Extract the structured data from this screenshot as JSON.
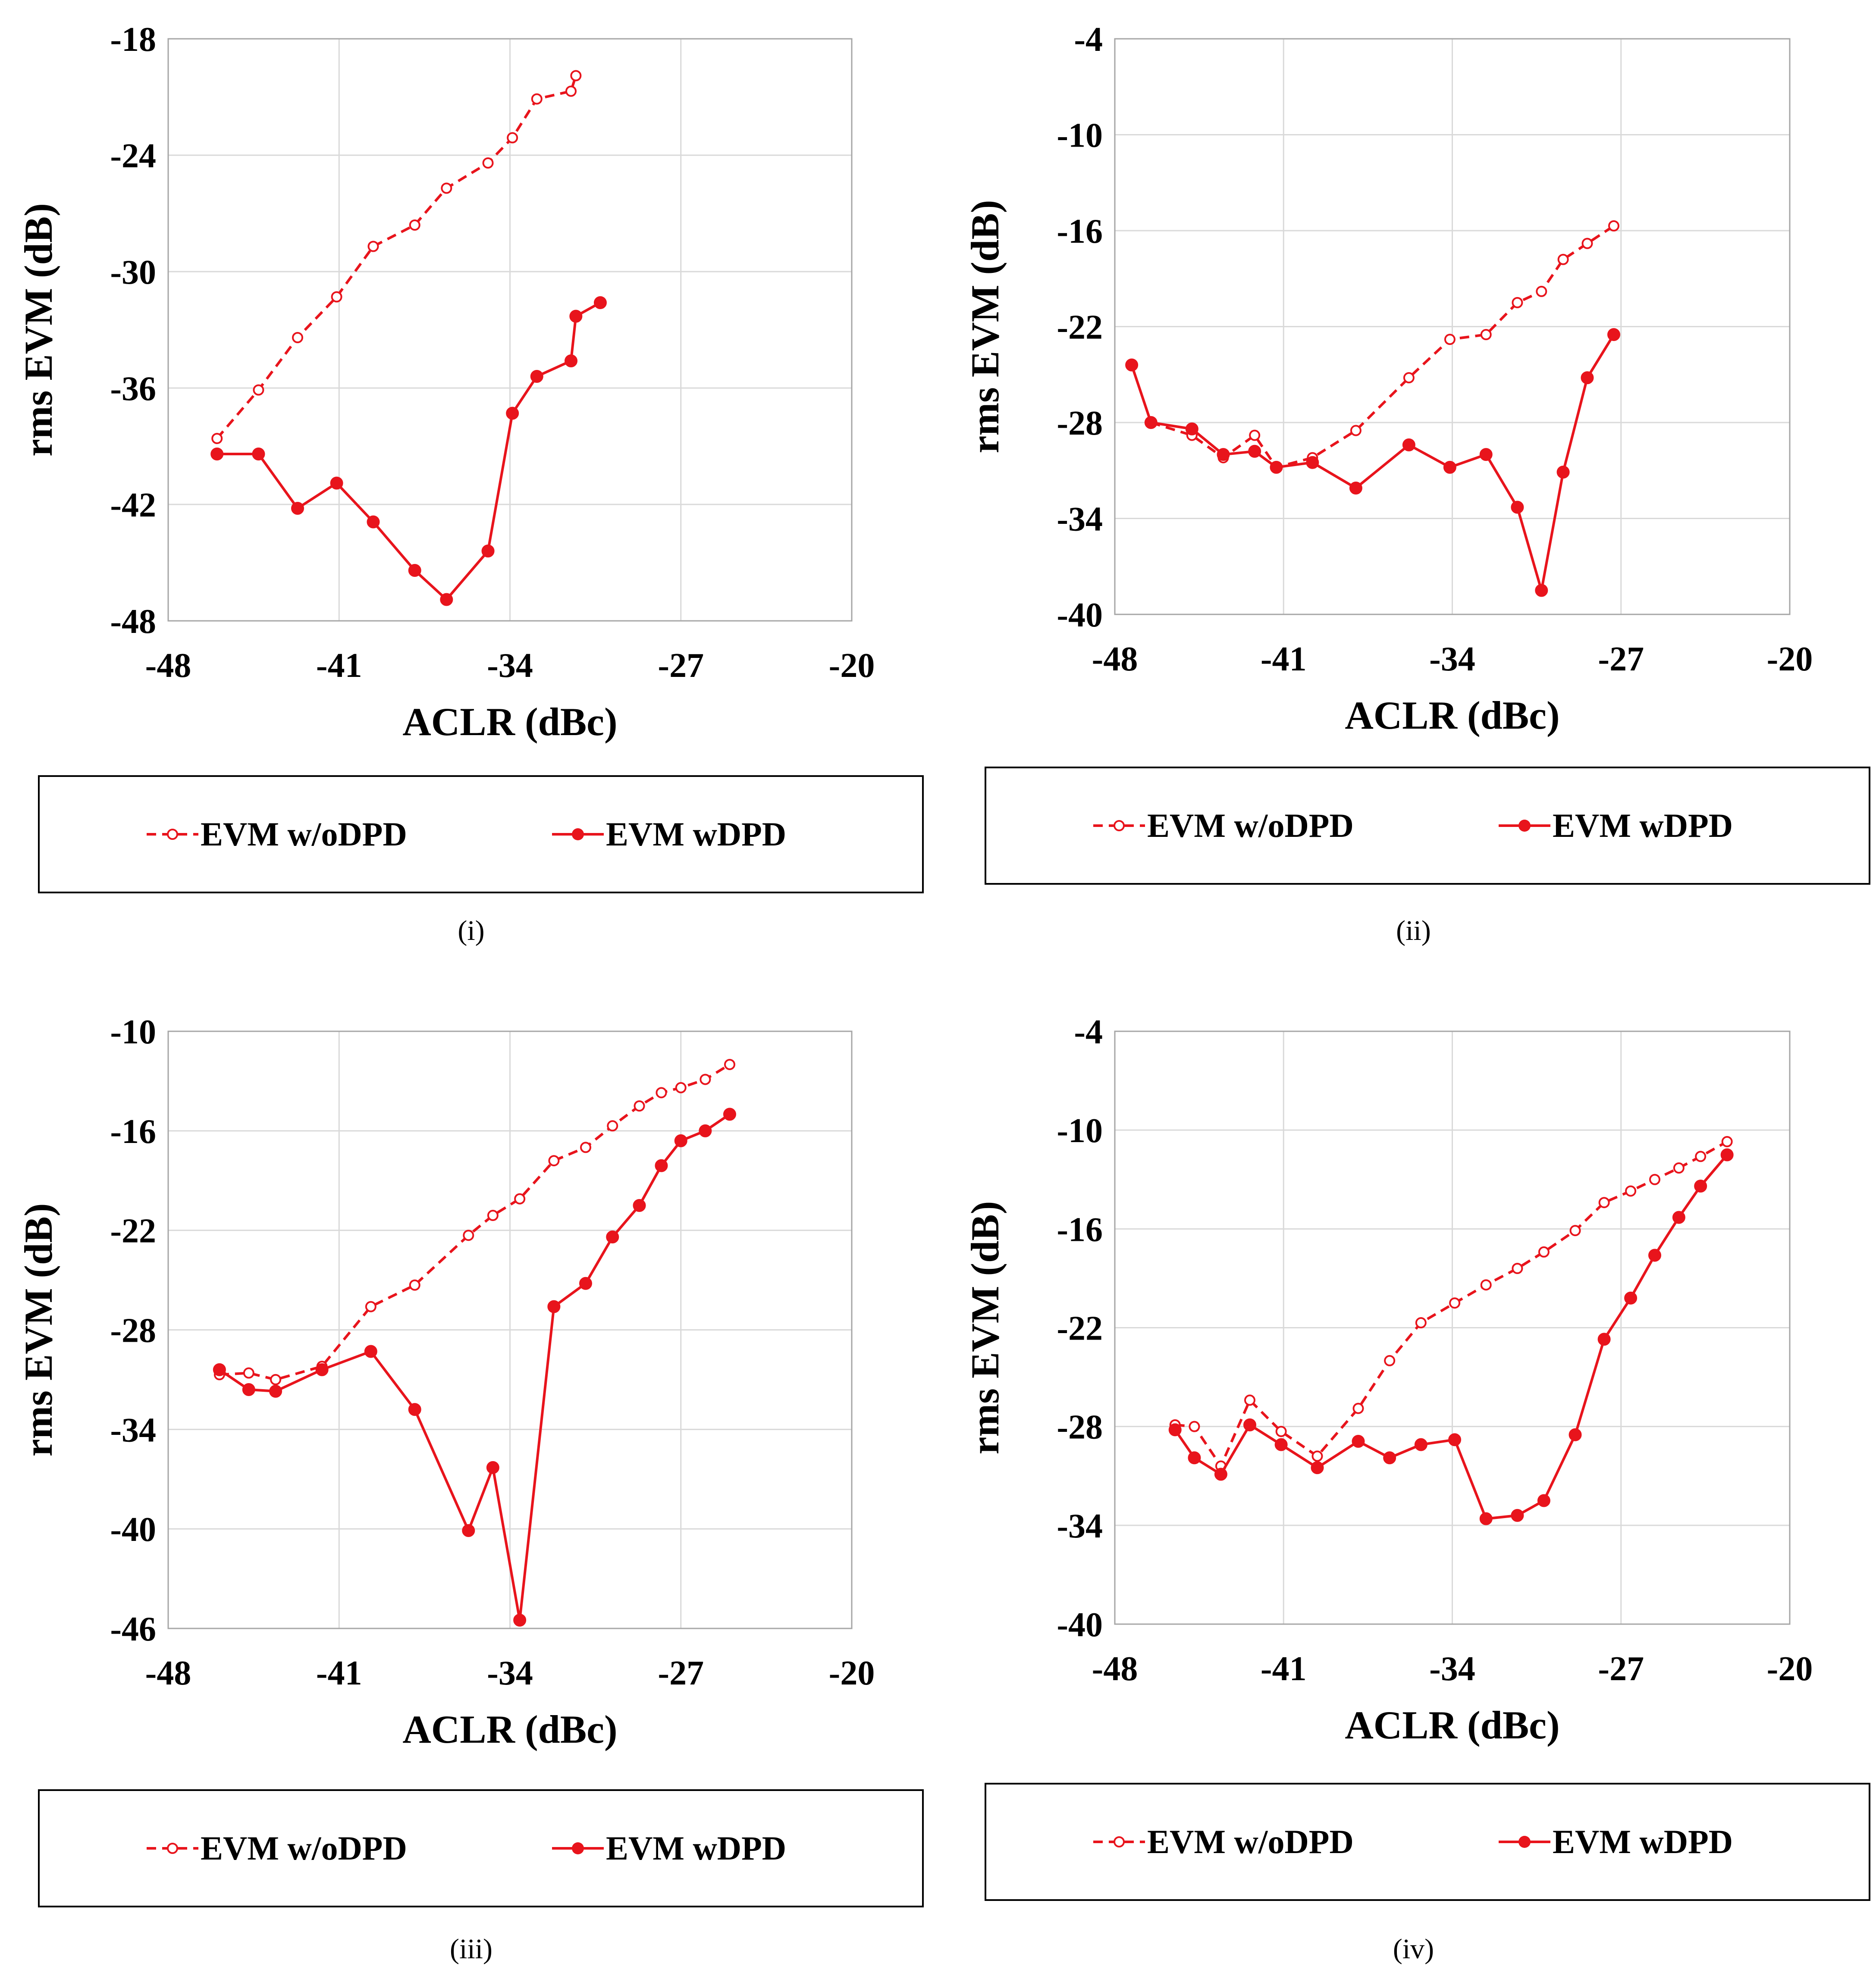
{
  "colors": {
    "series": "#e8141c",
    "grid": "#d9d9d9",
    "axis": "#a6a6a6",
    "text": "#000000"
  },
  "chart_data": [
    {
      "panel_label": "(i)",
      "type": "line",
      "xlabel": "ACLR (dBc)",
      "ylabel": "rms EVM (dB)",
      "xlim": [
        -48,
        -20
      ],
      "ylim": [
        -48,
        -18
      ],
      "xticks": [
        -48,
        -41,
        -34,
        -27,
        -20
      ],
      "yticks": [
        -18,
        -24,
        -30,
        -36,
        -42,
        -48
      ],
      "xtick_labels": [
        "-48",
        "-41",
        "-34",
        "-27",
        "-20"
      ],
      "ytick_labels": [
        "-18",
        "-24",
        "-30",
        "-36",
        "-42",
        "-48"
      ],
      "legend": [
        "EVM w/oDPD",
        "EVM wDPD"
      ],
      "series": [
        {
          "name": "EVM w/oDPD",
          "style": "dashed",
          "x": [
            -46,
            -44.3,
            -42.7,
            -41.1,
            -39.6,
            -37.9,
            -36.6,
            -34.9,
            -33.9,
            -32.9,
            -31.5,
            -31.3
          ],
          "y": [
            -38.6,
            -36.1,
            -33.4,
            -31.3,
            -28.7,
            -27.6,
            -25.7,
            -24.4,
            -23.1,
            -21.1,
            -20.7,
            -19.9
          ]
        },
        {
          "name": "EVM wDPD",
          "style": "solid",
          "x": [
            -46,
            -44.3,
            -42.7,
            -41.1,
            -39.6,
            -37.9,
            -36.6,
            -34.9,
            -33.9,
            -32.9,
            -31.5,
            -31.3,
            -30.3
          ],
          "y": [
            -39.4,
            -39.4,
            -42.2,
            -40.9,
            -42.9,
            -45.4,
            -46.9,
            -44.4,
            -37.3,
            -35.4,
            -34.6,
            -32.3,
            -31.6
          ]
        }
      ]
    },
    {
      "panel_label": "(ii)",
      "type": "line",
      "xlabel": "ACLR (dBc)",
      "ylabel": "rms EVM (dB)",
      "xlim": [
        -48,
        -20
      ],
      "ylim": [
        -40,
        -4
      ],
      "xticks": [
        -48,
        -41,
        -34,
        -27,
        -20
      ],
      "yticks": [
        -4,
        -10,
        -16,
        -22,
        -28,
        -34,
        -40
      ],
      "xtick_labels": [
        "-48",
        "-41",
        "-34",
        "-27",
        "-20"
      ],
      "ytick_labels": [
        "-4",
        "-10",
        "-16",
        "-22",
        "-28",
        "-34",
        "-40"
      ],
      "legend": [
        "EVM w/oDPD",
        "EVM wDPD"
      ],
      "series": [
        {
          "name": "EVM w/oDPD",
          "style": "dashed",
          "x": [
            -46.5,
            -44.8,
            -43.5,
            -42.2,
            -41.3,
            -39.8,
            -38,
            -35.8,
            -34.1,
            -32.6,
            -31.3,
            -30.3,
            -29.4,
            -28.4,
            -27.3
          ],
          "y": [
            -28,
            -28.8,
            -30.2,
            -28.8,
            -30.8,
            -30.2,
            -28.5,
            -25.2,
            -22.8,
            -22.5,
            -20.5,
            -19.8,
            -17.8,
            -16.8,
            -15.7
          ]
        },
        {
          "name": "EVM wDPD",
          "style": "solid",
          "x": [
            -47.3,
            -46.5,
            -44.8,
            -43.5,
            -42.2,
            -41.3,
            -39.8,
            -38,
            -35.8,
            -34.1,
            -32.6,
            -31.3,
            -30.3,
            -29.4,
            -28.4,
            -27.3
          ],
          "y": [
            -24.4,
            -28,
            -28.4,
            -30,
            -29.8,
            -30.8,
            -30.5,
            -32.1,
            -29.4,
            -30.8,
            -30.0,
            -33.3,
            -38.5,
            -31.1,
            -25.2,
            -22.5
          ]
        }
      ]
    },
    {
      "panel_label": "(iii)",
      "type": "line",
      "xlabel": "ACLR (dBc)",
      "ylabel": "rms EVM (dB)",
      "xlim": [
        -48,
        -20
      ],
      "ylim": [
        -46,
        -10
      ],
      "xticks": [
        -48,
        -41,
        -34,
        -27,
        -20
      ],
      "yticks": [
        -10,
        -16,
        -22,
        -28,
        -34,
        -40,
        -46
      ],
      "xtick_labels": [
        "-48",
        "-41",
        "-34",
        "-27",
        "-20"
      ],
      "ytick_labels": [
        "-10",
        "-16",
        "-22",
        "-28",
        "-34",
        "-40",
        "-46"
      ],
      "legend": [
        "EVM w/oDPD",
        "EVM wDPD"
      ],
      "series": [
        {
          "name": "EVM w/oDPD",
          "style": "dashed",
          "x": [
            -45.9,
            -44.7,
            -43.6,
            -41.7,
            -39.7,
            -37.9,
            -35.7,
            -34.7,
            -33.6,
            -32.2,
            -30.9,
            -29.8,
            -28.7,
            -27.8,
            -27.0,
            -26.0,
            -25.0
          ],
          "y": [
            -30.7,
            -30.6,
            -31,
            -30.2,
            -26.6,
            -25.3,
            -22.3,
            -21.1,
            -20.1,
            -17.8,
            -17.0,
            -15.7,
            -14.5,
            -13.7,
            -13.4,
            -12.9,
            -12.0
          ]
        },
        {
          "name": "EVM wDPD",
          "style": "solid",
          "x": [
            -45.9,
            -44.7,
            -43.6,
            -41.7,
            -39.7,
            -37.9,
            -35.7,
            -34.7,
            -33.6,
            -32.2,
            -30.9,
            -29.8,
            -28.7,
            -27.8,
            -27.0,
            -26.0,
            -25.0
          ],
          "y": [
            -30.4,
            -31.6,
            -31.7,
            -30.4,
            -29.3,
            -32.8,
            -40.1,
            -36.3,
            -45.5,
            -26.6,
            -25.2,
            -22.4,
            -20.5,
            -18.1,
            -16.6,
            -16.0,
            -15.0
          ]
        }
      ]
    },
    {
      "panel_label": "(iv)",
      "type": "line",
      "xlabel": "ACLR (dBc)",
      "ylabel": "rms EVM (dB)",
      "xlim": [
        -48,
        -20
      ],
      "ylim": [
        -40,
        -4
      ],
      "xticks": [
        -48,
        -41,
        -34,
        -27,
        -20
      ],
      "yticks": [
        -4,
        -10,
        -16,
        -22,
        -28,
        -34,
        -40
      ],
      "xtick_labels": [
        "-48",
        "-41",
        "-34",
        "-27",
        "-20"
      ],
      "ytick_labels": [
        "-4",
        "-10",
        "-16",
        "-22",
        "-28",
        "-34",
        "-40"
      ],
      "legend": [
        "EVM w/oDPD",
        "EVM wDPD"
      ],
      "series": [
        {
          "name": "EVM w/oDPD",
          "style": "dashed",
          "x": [
            -45.5,
            -44.7,
            -43.6,
            -42.4,
            -41.1,
            -39.6,
            -37.9,
            -36.6,
            -35.3,
            -33.9,
            -32.6,
            -31.3,
            -30.2,
            -28.9,
            -27.7,
            -26.6,
            -25.6,
            -24.6,
            -23.7,
            -22.6
          ],
          "y": [
            -27.9,
            -28.0,
            -30.4,
            -26.4,
            -28.3,
            -29.8,
            -26.9,
            -24.0,
            -21.7,
            -20.5,
            -19.4,
            -18.4,
            -17.4,
            -16.1,
            -14.4,
            -13.7,
            -13.0,
            -12.3,
            -11.6,
            -10.7
          ]
        },
        {
          "name": "EVM wDPD",
          "style": "solid",
          "x": [
            -45.5,
            -44.7,
            -43.6,
            -42.4,
            -41.1,
            -39.6,
            -37.9,
            -36.6,
            -35.3,
            -33.9,
            -32.6,
            -31.3,
            -30.2,
            -28.9,
            -27.7,
            -26.6,
            -25.6,
            -24.6,
            -23.7,
            -22.6
          ],
          "y": [
            -28.2,
            -29.9,
            -30.9,
            -27.9,
            -29.1,
            -30.5,
            -28.9,
            -29.9,
            -29.1,
            -28.8,
            -33.6,
            -33.4,
            -32.5,
            -28.5,
            -22.7,
            -20.2,
            -17.6,
            -15.3,
            -13.4,
            -11.5
          ]
        }
      ]
    }
  ]
}
